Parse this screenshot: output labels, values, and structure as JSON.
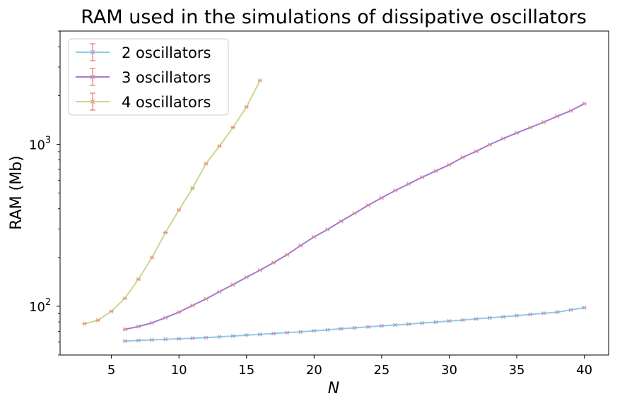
{
  "chart_data": {
    "type": "line",
    "title": "RAM used in the simulations of dissipative oscillators",
    "xlabel": "N",
    "ylabel": "RAM (Mb)",
    "xscale": "linear",
    "yscale": "log",
    "xlim": [
      1.2,
      41.8
    ],
    "ylim": [
      50,
      5000
    ],
    "xticks": [
      5,
      10,
      15,
      20,
      25,
      30,
      35,
      40
    ],
    "xtick_labels": [
      "5",
      "10",
      "15",
      "20",
      "25",
      "30",
      "35",
      "40"
    ],
    "yticks": [
      100,
      1000
    ],
    "ytick_labels": [
      {
        "base": "10",
        "exp": "2"
      },
      {
        "base": "10",
        "exp": "3"
      }
    ],
    "grid": false,
    "legend_position": "top-left",
    "errorbar_color": "#f07070",
    "series": [
      {
        "name": "2 oscillators",
        "color": "#87ceeb",
        "marker_color": "#a0a8d8",
        "x": [
          6,
          7,
          8,
          9,
          10,
          11,
          12,
          13,
          14,
          15,
          16,
          17,
          18,
          19,
          20,
          21,
          22,
          23,
          24,
          25,
          26,
          27,
          28,
          29,
          30,
          31,
          32,
          33,
          34,
          35,
          36,
          37,
          38,
          39,
          40
        ],
        "y": [
          61,
          61.5,
          62,
          62.5,
          63,
          63.5,
          64,
          64.8,
          65.5,
          66.3,
          67,
          67.8,
          68.7,
          69.5,
          70.5,
          71.5,
          72.6,
          73.5,
          74.6,
          75.6,
          76.6,
          77.6,
          78.7,
          79.8,
          81,
          82.2,
          83.5,
          84.8,
          86,
          87.5,
          89,
          90.5,
          92,
          95,
          98
        ]
      },
      {
        "name": "3 oscillators",
        "color": "#a678d0",
        "marker_color": "#c78fb0",
        "x": [
          6,
          7,
          8,
          9,
          10,
          11,
          12,
          13,
          14,
          15,
          16,
          17,
          18,
          19,
          20,
          21,
          22,
          23,
          24,
          25,
          26,
          27,
          28,
          29,
          30,
          31,
          32,
          33,
          34,
          35,
          36,
          37,
          38,
          39,
          40
        ],
        "y": [
          72,
          75,
          79,
          85,
          92,
          101,
          111,
          123,
          136,
          151,
          167,
          186,
          208,
          237,
          268,
          298,
          335,
          375,
          420,
          467,
          518,
          569,
          626,
          684,
          747,
          830,
          905,
          995,
          1085,
          1175,
          1268,
          1370,
          1490,
          1610,
          1780
        ]
      },
      {
        "name": "4 oscillators",
        "color": "#c8d890",
        "marker_color": "#e0a870",
        "x": [
          3,
          4,
          5,
          6,
          7,
          8,
          9,
          10,
          11,
          12,
          13,
          14,
          15,
          16
        ],
        "y": [
          78,
          82,
          93,
          112,
          147,
          200,
          285,
          393,
          535,
          760,
          975,
          1270,
          1700,
          2480
        ]
      }
    ]
  }
}
